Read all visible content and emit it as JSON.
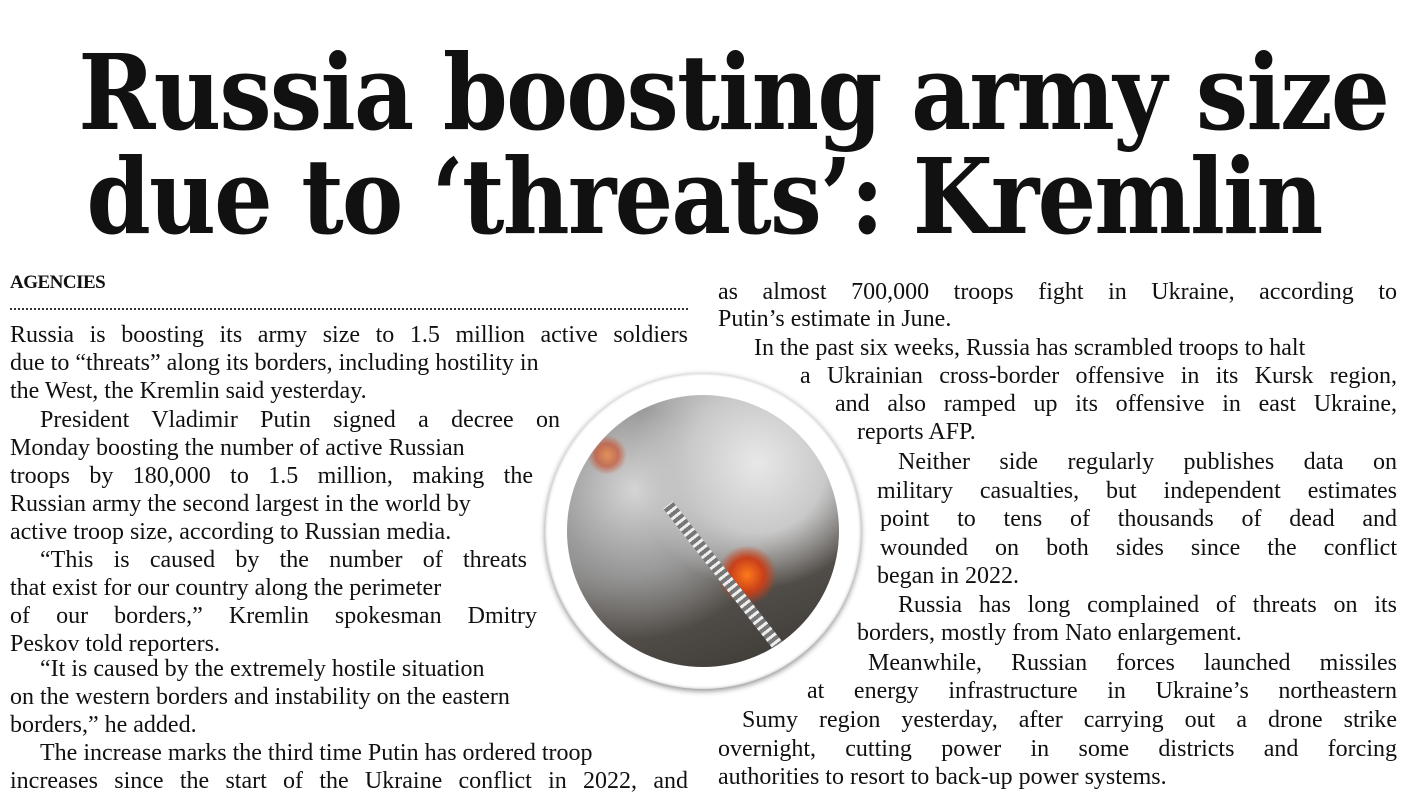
{
  "headline": {
    "line1": "Russia boosting army size",
    "line2": "due to ‘threats’: Kremlin"
  },
  "byline": "AGENCIES",
  "photo": {
    "icon": "fire-building-photo"
  },
  "left_column": [
    "Russia is boosting its army size to 1.5 million active soldiers",
    "due to “threats” along its borders, including hostility in",
    "the West, the Kremlin said yesterday.",
    "President Vladimir Putin signed a decree on",
    "Monday boosting the number of active Russian",
    "troops by 180,000 to 1.5 million, making the",
    "Russian army the second largest in the world by",
    "active troop size, according to Russian media.",
    "“This is caused by the number of threats",
    "that exist for our country along the perimeter",
    "of our borders,” Kremlin spokesman Dmitry",
    "Peskov told reporters.",
    "“It is caused by the extremely hostile situation",
    "on the western borders and instability on the eastern",
    "borders,” he added.",
    "The increase marks the third time Putin has ordered troop",
    "increases since the start of the Ukraine conflict in 2022, and"
  ],
  "right_column": [
    "as almost 700,000 troops fight in Ukraine, according to",
    "Putin’s estimate in June.",
    "In the past six weeks, Russia has scrambled troops to halt",
    "a Ukrainian cross-border offensive in its Kursk region,",
    "and also ramped up its offensive in east Ukraine,",
    "reports AFP.",
    "Neither side regularly publishes data on",
    "military casualties, but independent estimates",
    "point to tens of thousands of dead and",
    "wounded on both sides since the conflict",
    "began in 2022.",
    "Russia has long complained of threats on its",
    "borders, mostly from Nato enlargement.",
    "Meanwhile, Russian forces launched missiles",
    "at energy infrastructure in Ukraine’s northeastern",
    "Sumy region yesterday, after carrying out a drone strike",
    "overnight, cutting power in some districts and forcing",
    "authorities to resort to back-up power systems."
  ]
}
